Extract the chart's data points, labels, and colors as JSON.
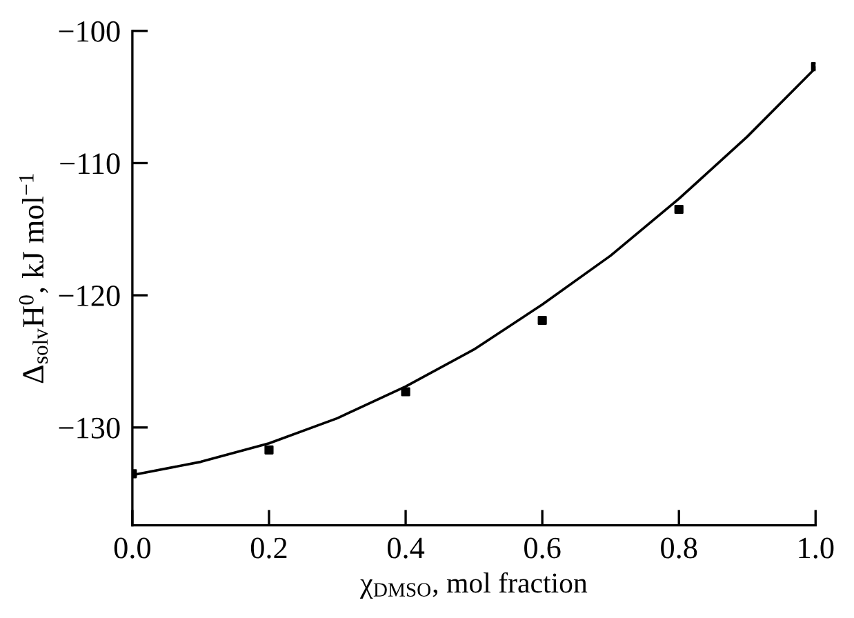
{
  "chart_data": {
    "type": "scatter",
    "xlabel": "χ$_{DMSO}$, mol fraction",
    "ylabel": "Δ$_{solv}$H$^{0}$, kJ mol$^{−1}$",
    "xlim": [
      0.0,
      1.0
    ],
    "ylim": [
      -137.4,
      -100
    ],
    "xticks": [
      {
        "value": 0.0,
        "label": "0.0"
      },
      0.2,
      0.4,
      0.6,
      0.8,
      {
        "value": 1.0,
        "label": "1.0"
      }
    ],
    "yticks": [
      {
        "value": -130,
        "label": "−130"
      },
      {
        "value": -120,
        "label": "−120"
      },
      {
        "value": -110,
        "label": "−110"
      },
      {
        "value": -100,
        "label": "−100"
      }
    ],
    "grid": false,
    "legend": false,
    "series": [
      {
        "color": "#000000",
        "marker": "square",
        "x": [
          0.0,
          0.2,
          0.4,
          0.6,
          0.8,
          1.0
        ],
        "values": [
          -133.5,
          -131.7,
          -127.3,
          -121.9,
          -113.5,
          -102.7
        ]
      },
      {
        "type": "line",
        "color": "#000000",
        "marker": "none",
        "line_style": "solid",
        "x": [
          0.0,
          0.1,
          0.2,
          0.3,
          0.4,
          0.5,
          0.6,
          0.7,
          0.8,
          0.9,
          1.0
        ],
        "values": [
          -133.6,
          -132.6,
          -131.2,
          -129.3,
          -126.9,
          -124.1,
          -120.7,
          -117.0,
          -112.7,
          -108.0,
          -102.8
        ]
      }
    ]
  }
}
